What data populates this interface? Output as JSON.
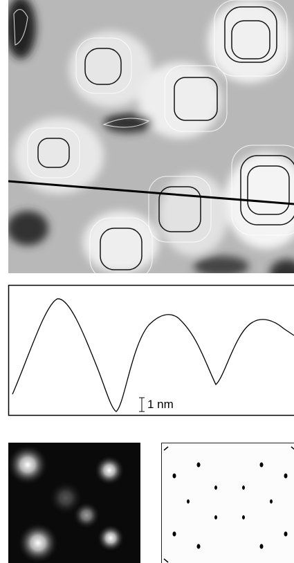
{
  "scale_bar": {
    "label": "1 nm"
  }
}
